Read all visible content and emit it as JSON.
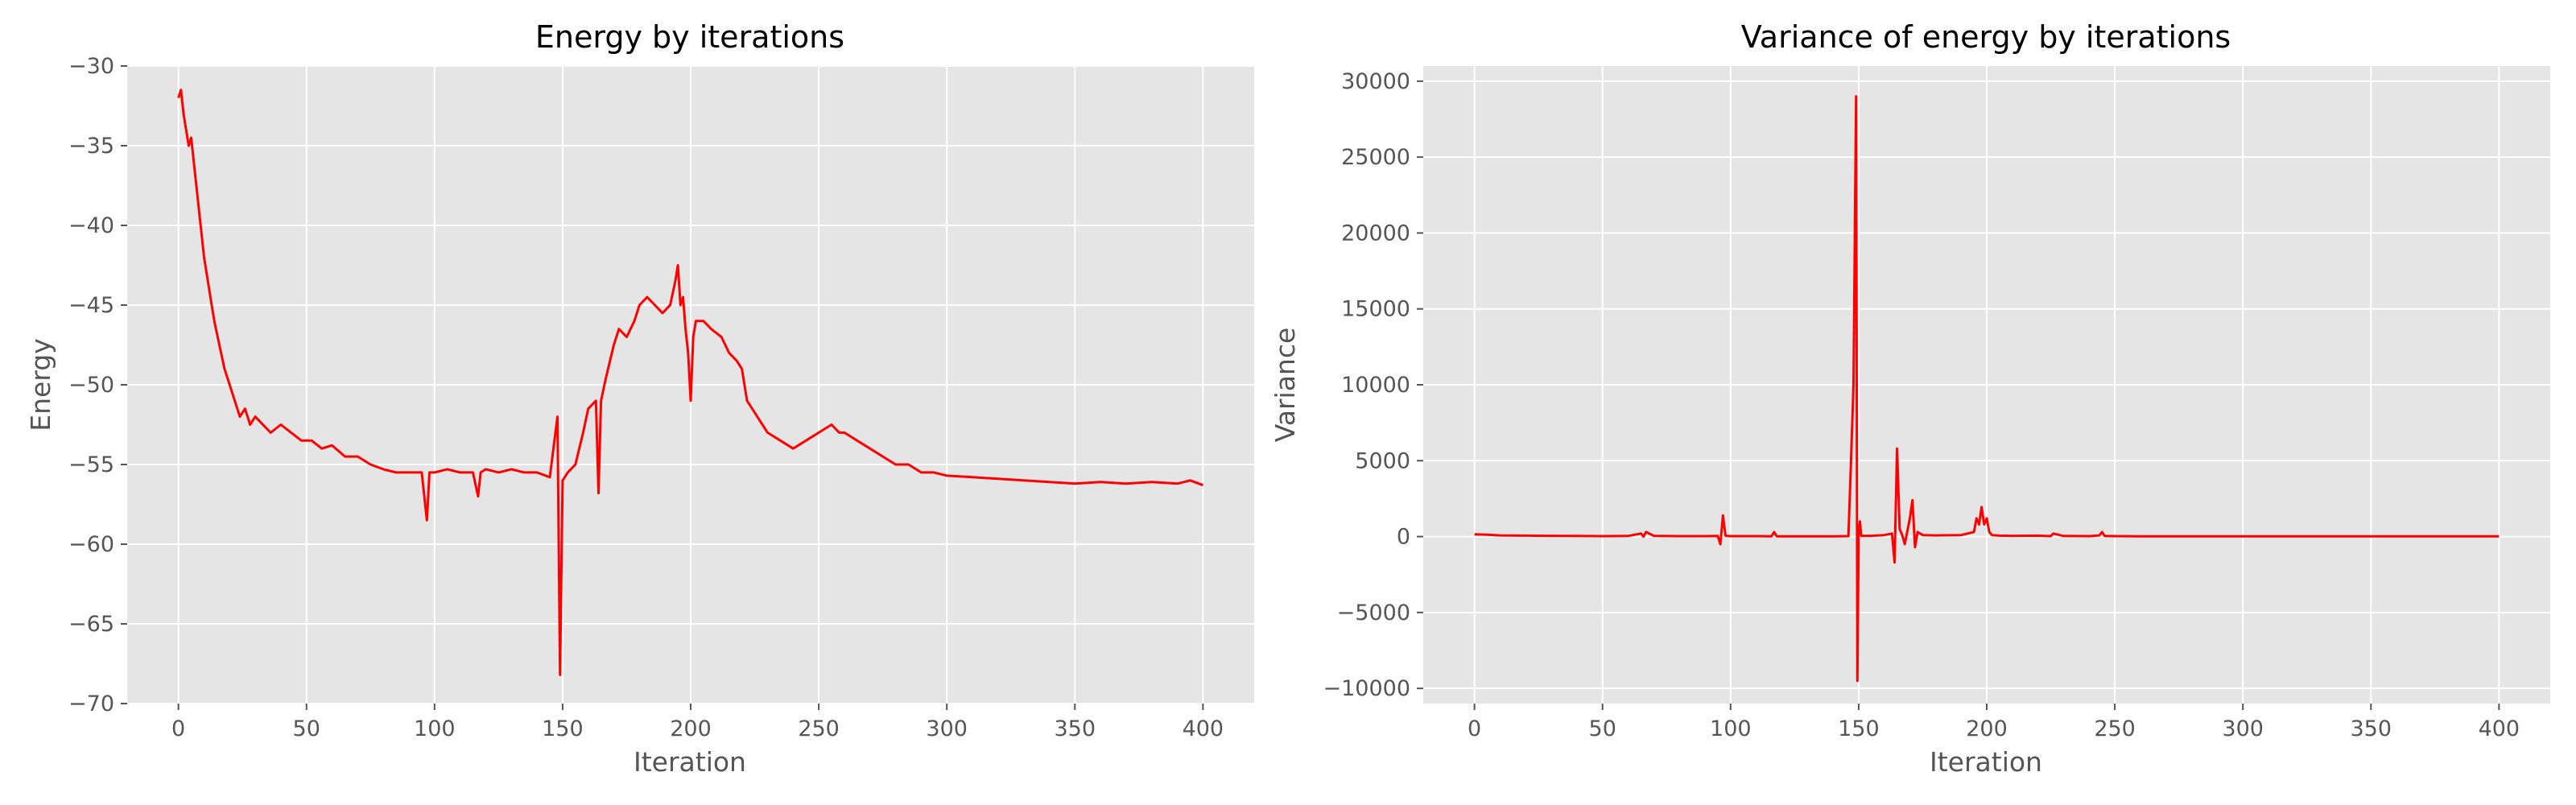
{
  "colors": {
    "line": "#ff0000",
    "panel": "#e5e5e5",
    "grid": "#ffffff",
    "text": "#555555",
    "title": "#000000"
  },
  "chart_data": [
    {
      "type": "line",
      "title": "Energy by iterations",
      "xlabel": "Iteration",
      "ylabel": "Energy",
      "xlim": [
        -20,
        420
      ],
      "ylim": [
        -70,
        -30
      ],
      "xticks": [
        0,
        50,
        100,
        150,
        200,
        250,
        300,
        350,
        400
      ],
      "yticks": [
        -70,
        -65,
        -60,
        -55,
        -50,
        -45,
        -40,
        -35,
        -30
      ],
      "grid": true,
      "series": [
        {
          "color": "#ff0000",
          "x": [
            0,
            1,
            2,
            3,
            4,
            5,
            6,
            7,
            8,
            9,
            10,
            12,
            14,
            16,
            18,
            20,
            22,
            24,
            26,
            28,
            30,
            33,
            36,
            40,
            44,
            48,
            52,
            56,
            60,
            65,
            70,
            75,
            80,
            85,
            90,
            95,
            97,
            98,
            100,
            105,
            110,
            115,
            117,
            118,
            120,
            125,
            130,
            135,
            140,
            145,
            148,
            149,
            150,
            152,
            155,
            158,
            160,
            163,
            164,
            165,
            167,
            170,
            172,
            175,
            178,
            180,
            183,
            186,
            189,
            192,
            194,
            195,
            196,
            197,
            198,
            199,
            200,
            201,
            202,
            205,
            208,
            212,
            215,
            218,
            220,
            222,
            224,
            226,
            228,
            230,
            235,
            240,
            245,
            250,
            255,
            258,
            260,
            265,
            270,
            275,
            280,
            285,
            290,
            295,
            300,
            310,
            320,
            330,
            340,
            350,
            360,
            370,
            380,
            390,
            395,
            400
          ],
          "y": [
            -32,
            -31.5,
            -33,
            -34,
            -35,
            -34.5,
            -36,
            -37.5,
            -39,
            -40.5,
            -42,
            -44,
            -46,
            -47.5,
            -49,
            -50,
            -51,
            -52,
            -51.5,
            -52.5,
            -52,
            -52.5,
            -53,
            -52.5,
            -53,
            -53.5,
            -53.5,
            -54,
            -53.8,
            -54.5,
            -54.5,
            -55,
            -55.3,
            -55.5,
            -55.5,
            -55.5,
            -58.5,
            -55.5,
            -55.5,
            -55.3,
            -55.5,
            -55.5,
            -57,
            -55.5,
            -55.3,
            -55.5,
            -55.3,
            -55.5,
            -55.5,
            -55.8,
            -52,
            -68.2,
            -56,
            -55.5,
            -55,
            -53,
            -51.5,
            -51,
            -56.8,
            -51,
            -49.5,
            -47.5,
            -46.5,
            -47,
            -46,
            -45,
            -44.5,
            -45,
            -45.5,
            -45,
            -43.5,
            -42.5,
            -45,
            -44.5,
            -46.5,
            -48,
            -51,
            -47,
            -46,
            -46,
            -46.5,
            -47,
            -48,
            -48.5,
            -49,
            -51,
            -51.5,
            -52,
            -52.5,
            -53,
            -53.5,
            -54,
            -53.5,
            -53,
            -52.5,
            -53,
            -53,
            -53.5,
            -54,
            -54.5,
            -55,
            -55,
            -55.5,
            -55.5,
            -55.7,
            -55.8,
            -55.9,
            -56,
            -56.1,
            -56.2,
            -56.1,
            -56.2,
            -56.1,
            -56.2,
            -56,
            -56.3
          ]
        }
      ]
    },
    {
      "type": "line",
      "title": "Variance of energy by iterations",
      "xlabel": "Iteration",
      "ylabel": "Variance",
      "xlim": [
        -20,
        420
      ],
      "ylim": [
        -11000,
        31000
      ],
      "xticks": [
        0,
        50,
        100,
        150,
        200,
        250,
        300,
        350,
        400
      ],
      "yticks": [
        -10000,
        -5000,
        0,
        5000,
        10000,
        15000,
        20000,
        25000,
        30000
      ],
      "grid": true,
      "series": [
        {
          "color": "#ff0000",
          "x": [
            0,
            5,
            10,
            20,
            30,
            40,
            50,
            60,
            65,
            66,
            67,
            70,
            80,
            90,
            95,
            96,
            97,
            98,
            100,
            110,
            116,
            117,
            118,
            120,
            130,
            140,
            146,
            147,
            148,
            149,
            149.5,
            150,
            150.5,
            151,
            155,
            160,
            163,
            164,
            165,
            166,
            167,
            168,
            170,
            171,
            172,
            173,
            175,
            180,
            190,
            195,
            196,
            197,
            198,
            199,
            200,
            201,
            202,
            205,
            210,
            220,
            225,
            226,
            230,
            240,
            244,
            245,
            246,
            250,
            260,
            280,
            300,
            320,
            340,
            360,
            380,
            400
          ],
          "y": [
            150,
            120,
            80,
            60,
            50,
            40,
            30,
            40,
            200,
            0,
            300,
            50,
            30,
            30,
            40,
            -500,
            1400,
            50,
            30,
            30,
            20,
            300,
            20,
            20,
            20,
            20,
            30,
            5000,
            10000,
            29000,
            -9500,
            200,
            1000,
            50,
            50,
            100,
            200,
            -1700,
            5800,
            500,
            100,
            -500,
            1200,
            2400,
            -700,
            300,
            100,
            80,
            100,
            300,
            1200,
            800,
            1950,
            800,
            1200,
            300,
            100,
            60,
            50,
            60,
            30,
            200,
            40,
            30,
            80,
            300,
            40,
            30,
            20,
            20,
            20,
            20,
            20,
            20,
            20,
            20
          ]
        }
      ]
    }
  ]
}
